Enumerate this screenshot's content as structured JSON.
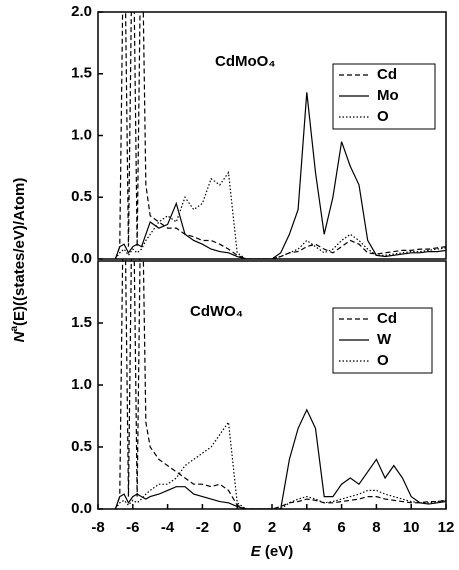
{
  "chart_data": [
    {
      "type": "line",
      "title": "CdMoO₄",
      "ylabel": [
        "N",
        "a",
        "(E)((states/eV)/Atom)"
      ],
      "x": [
        -7,
        -6.75,
        -6.5,
        -6.25,
        -6,
        -5.75,
        -5.5,
        -5.25,
        -5,
        -4.5,
        -4,
        -3.5,
        -3,
        -2.5,
        -2,
        -1.5,
        -1,
        -0.5,
        0,
        0.5,
        1,
        1.5,
        2,
        2.5,
        3,
        3.5,
        4,
        4.5,
        5,
        5.5,
        6,
        6.5,
        7,
        7.5,
        8,
        8.5,
        9,
        9.5,
        10,
        10.5,
        11,
        11.5,
        12
      ],
      "xlim": [
        -8,
        12
      ],
      "ylim": [
        0,
        2
      ],
      "yticks": [
        {
          "value": 0,
          "label": "0.0"
        },
        {
          "value": 0.5,
          "label": "0.5"
        },
        {
          "value": 1,
          "label": "1.0"
        },
        {
          "value": 1.5,
          "label": "1.5"
        },
        {
          "value": 2,
          "label": "2.0"
        }
      ],
      "series": [
        {
          "name": "Cd",
          "color": "#000000",
          "dash": "dashed",
          "values": [
            0,
            0.1,
            3,
            0.1,
            3,
            0.1,
            3,
            0.6,
            0.35,
            0.3,
            0.25,
            0.25,
            0.2,
            0.18,
            0.15,
            0.15,
            0.12,
            0.08,
            0.03,
            0,
            0,
            0,
            0,
            0.02,
            0.05,
            0.06,
            0.1,
            0.12,
            0.08,
            0.05,
            0.1,
            0.15,
            0.12,
            0.05,
            0.04,
            0.05,
            0.06,
            0.07,
            0.07,
            0.08,
            0.08,
            0.09,
            0.1
          ]
        },
        {
          "name": "Mo",
          "color": "#000000",
          "dash": "solid",
          "values": [
            0,
            0.1,
            0.12,
            0.05,
            0.1,
            0.12,
            0.1,
            0.2,
            0.3,
            0.25,
            0.28,
            0.45,
            0.2,
            0.15,
            0.12,
            0.08,
            0.06,
            0.05,
            0.02,
            0,
            0,
            0,
            0,
            0.05,
            0.2,
            0.4,
            1.35,
            0.7,
            0.2,
            0.5,
            0.95,
            0.75,
            0.6,
            0.15,
            0.03,
            0.02,
            0.03,
            0.04,
            0.05,
            0.05,
            0.06,
            0.06,
            0.07
          ]
        },
        {
          "name": "O",
          "color": "#000000",
          "dash": "dotted",
          "values": [
            0,
            0.05,
            0.08,
            0.03,
            0.08,
            0.05,
            0.08,
            0.15,
            0.2,
            0.3,
            0.35,
            0.3,
            0.5,
            0.4,
            0.45,
            0.65,
            0.6,
            0.7,
            0.05,
            0,
            0,
            0,
            0,
            0.02,
            0.05,
            0.08,
            0.15,
            0.1,
            0.05,
            0.08,
            0.15,
            0.2,
            0.15,
            0.08,
            0.03,
            0.03,
            0.04,
            0.05,
            0.06,
            0.06,
            0.07,
            0.08,
            0.09
          ]
        }
      ]
    },
    {
      "type": "line",
      "title": "CdWO₄",
      "xlabel": [
        "E",
        " (eV)"
      ],
      "x": [
        -7,
        -6.75,
        -6.5,
        -6.25,
        -6,
        -5.75,
        -5.5,
        -5.25,
        -5,
        -4.5,
        -4,
        -3.5,
        -3,
        -2.5,
        -2,
        -1.5,
        -1,
        -0.5,
        0,
        0.5,
        1,
        1.5,
        2,
        2.5,
        3,
        3.5,
        4,
        4.5,
        5,
        5.5,
        6,
        6.5,
        7,
        7.5,
        8,
        8.5,
        9,
        9.5,
        10,
        10.5,
        11,
        11.5,
        12
      ],
      "xlim": [
        -8,
        12
      ],
      "ylim": [
        0,
        2
      ],
      "xticks": [
        -8,
        -6,
        -4,
        -2,
        0,
        2,
        4,
        6,
        8,
        10,
        12
      ],
      "yticks": [
        {
          "value": 0,
          "label": "0.0"
        },
        {
          "value": 0.5,
          "label": "0.5"
        },
        {
          "value": 1,
          "label": "1.0"
        },
        {
          "value": 1.5,
          "label": "1.5"
        }
      ],
      "series": [
        {
          "name": "Cd",
          "color": "#000000",
          "dash": "dashed",
          "values": [
            0,
            0.1,
            3,
            0.1,
            3,
            0.1,
            3,
            0.7,
            0.5,
            0.4,
            0.35,
            0.3,
            0.25,
            0.2,
            0.2,
            0.18,
            0.2,
            0.15,
            0.03,
            0,
            0,
            0,
            0,
            0.02,
            0.05,
            0.06,
            0.08,
            0.07,
            0.05,
            0.05,
            0.06,
            0.07,
            0.08,
            0.1,
            0.1,
            0.08,
            0.07,
            0.06,
            0.05,
            0.05,
            0.06,
            0.06,
            0.07
          ]
        },
        {
          "name": "W",
          "color": "#000000",
          "dash": "solid",
          "values": [
            0,
            0.1,
            0.12,
            0.05,
            0.1,
            0.12,
            0.1,
            0.08,
            0.1,
            0.12,
            0.15,
            0.18,
            0.18,
            0.12,
            0.1,
            0.08,
            0.06,
            0.05,
            0.02,
            0,
            0,
            0,
            0,
            0,
            0.4,
            0.65,
            0.8,
            0.65,
            0.1,
            0.1,
            0.2,
            0.25,
            0.2,
            0.3,
            0.4,
            0.25,
            0.35,
            0.25,
            0.1,
            0.05,
            0.04,
            0.05,
            0.06
          ]
        },
        {
          "name": "O",
          "color": "#000000",
          "dash": "dotted",
          "values": [
            0,
            0.05,
            0.07,
            0.03,
            0.07,
            0.05,
            0.08,
            0.12,
            0.15,
            0.2,
            0.2,
            0.25,
            0.35,
            0.4,
            0.45,
            0.5,
            0.6,
            0.7,
            0.05,
            0,
            0,
            0,
            0,
            0,
            0.05,
            0.08,
            0.1,
            0.08,
            0.05,
            0.06,
            0.08,
            0.1,
            0.12,
            0.15,
            0.15,
            0.12,
            0.1,
            0.08,
            0.06,
            0.05,
            0.05,
            0.06,
            0.07
          ]
        }
      ]
    }
  ]
}
